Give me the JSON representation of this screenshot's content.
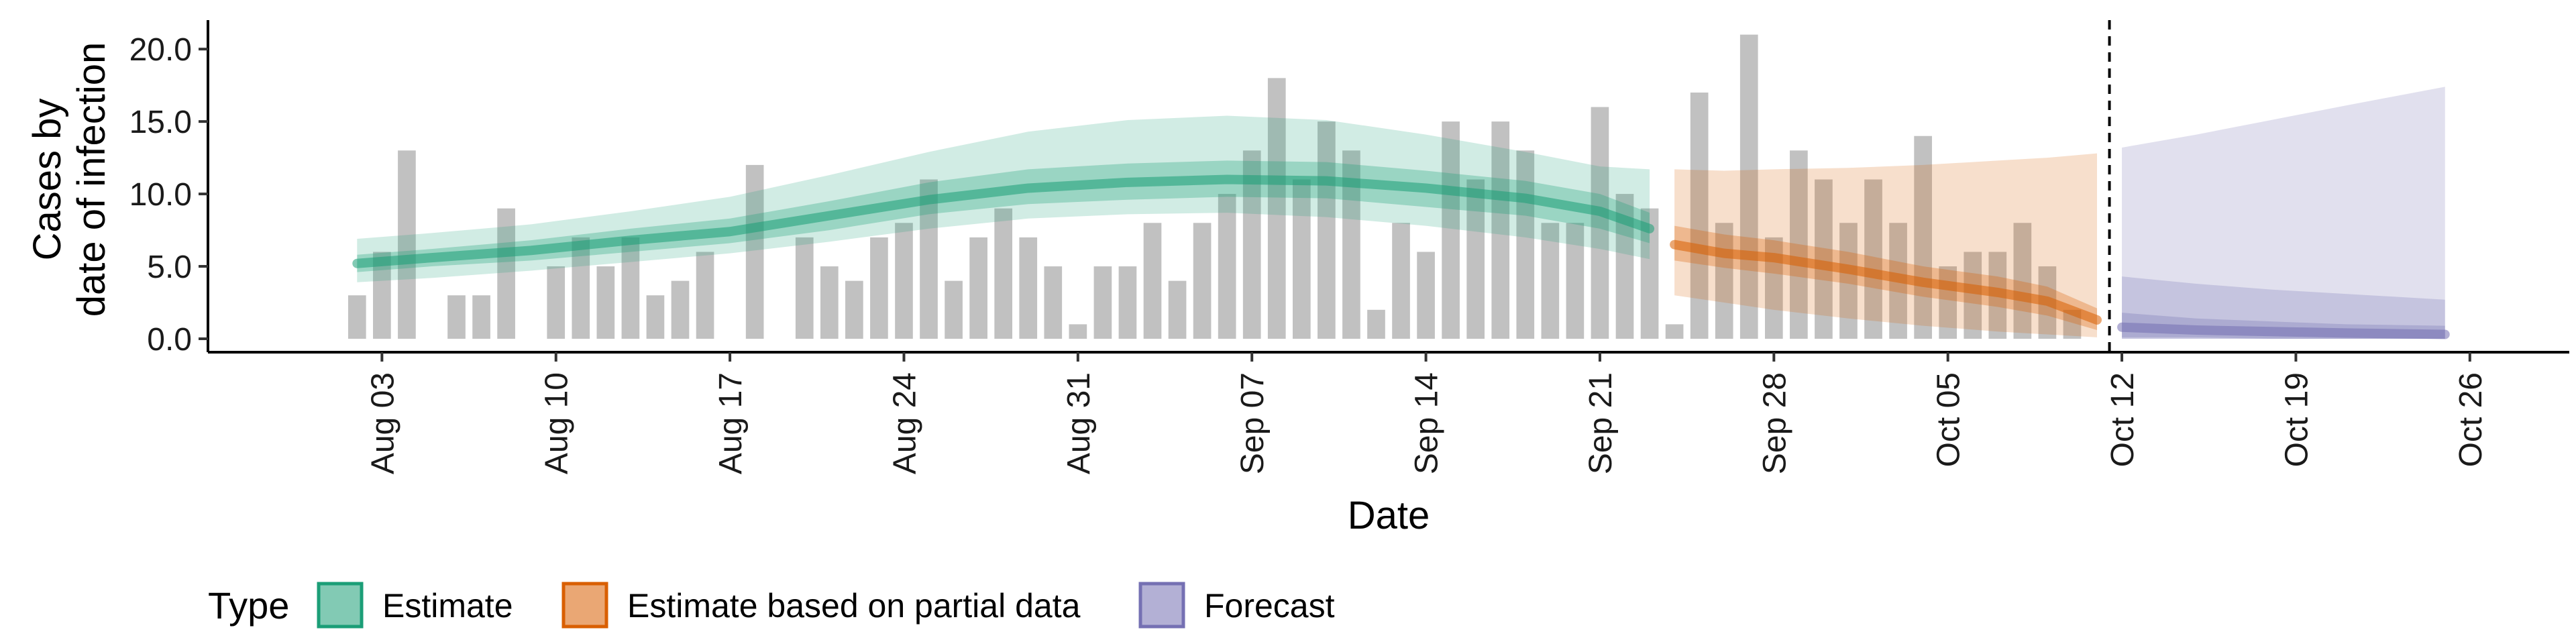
{
  "chart_data": {
    "type": "bar",
    "xlabel": "Date",
    "ylabel_lines": [
      "Cases by",
      "date of infection"
    ],
    "ylim": [
      0,
      22
    ],
    "xlim": [
      "2020-07-27",
      "2020-10-30"
    ],
    "y_ticks": [
      0,
      5,
      10,
      15,
      20
    ],
    "y_tick_labels": [
      "0.0",
      "5.0",
      "10.0",
      "15.0",
      "20.0"
    ],
    "x_ticks": [
      "2020-08-03",
      "2020-08-10",
      "2020-08-17",
      "2020-08-24",
      "2020-08-31",
      "2020-09-07",
      "2020-09-14",
      "2020-09-21",
      "2020-09-28",
      "2020-10-05",
      "2020-10-12",
      "2020-10-19",
      "2020-10-26"
    ],
    "x_tick_labels": [
      "Aug 03",
      "Aug 10",
      "Aug 17",
      "Aug 24",
      "Aug 31",
      "Sep 07",
      "Sep 14",
      "Sep 21",
      "Sep 28",
      "Oct 05",
      "Oct 12",
      "Oct 19",
      "Oct 26"
    ],
    "grid": false,
    "legend_position": "bottom",
    "reported_cases": {
      "color": "#bebebe",
      "dates": [
        "2020-08-02",
        "2020-08-03",
        "2020-08-04",
        "2020-08-05",
        "2020-08-06",
        "2020-08-07",
        "2020-08-08",
        "2020-08-09",
        "2020-08-10",
        "2020-08-11",
        "2020-08-12",
        "2020-08-13",
        "2020-08-14",
        "2020-08-15",
        "2020-08-16",
        "2020-08-17",
        "2020-08-18",
        "2020-08-19",
        "2020-08-20",
        "2020-08-21",
        "2020-08-22",
        "2020-08-23",
        "2020-08-24",
        "2020-08-25",
        "2020-08-26",
        "2020-08-27",
        "2020-08-28",
        "2020-08-29",
        "2020-08-30",
        "2020-08-31",
        "2020-09-01",
        "2020-09-02",
        "2020-09-03",
        "2020-09-04",
        "2020-09-05",
        "2020-09-06",
        "2020-09-07",
        "2020-09-08",
        "2020-09-09",
        "2020-09-10",
        "2020-09-11",
        "2020-09-12",
        "2020-09-13",
        "2020-09-14",
        "2020-09-15",
        "2020-09-16",
        "2020-09-17",
        "2020-09-18",
        "2020-09-19",
        "2020-09-20",
        "2020-09-21",
        "2020-09-22",
        "2020-09-23",
        "2020-09-24",
        "2020-09-25",
        "2020-09-26",
        "2020-09-27",
        "2020-09-28",
        "2020-09-29",
        "2020-09-30",
        "2020-10-01",
        "2020-10-02",
        "2020-10-03",
        "2020-10-04",
        "2020-10-05",
        "2020-10-06",
        "2020-10-07",
        "2020-10-08",
        "2020-10-09",
        "2020-10-10",
        "2020-10-11"
      ],
      "values": [
        3,
        6,
        13,
        0,
        3,
        3,
        9,
        0,
        5,
        7,
        5,
        7,
        3,
        4,
        6,
        0,
        12,
        0,
        7,
        5,
        4,
        7,
        8,
        11,
        4,
        7,
        9,
        7,
        5,
        1,
        5,
        5,
        8,
        4,
        8,
        10,
        13,
        18,
        11,
        15,
        13,
        2,
        8,
        6,
        15,
        11,
        15,
        13,
        8,
        8,
        16,
        10,
        9,
        1,
        17,
        8,
        21,
        7,
        13,
        11,
        8,
        11,
        8,
        14,
        5,
        6,
        6,
        8,
        5,
        2,
        0
      ]
    },
    "series": [
      {
        "name": "Estimate",
        "color": "#1b9e77",
        "dates": [
          "2020-08-02",
          "2020-08-05",
          "2020-08-09",
          "2020-08-13",
          "2020-08-17",
          "2020-08-21",
          "2020-08-25",
          "2020-08-29",
          "2020-09-02",
          "2020-09-06",
          "2020-09-10",
          "2020-09-14",
          "2020-09-18",
          "2020-09-21",
          "2020-09-23"
        ],
        "median": [
          5.2,
          5.6,
          6.1,
          6.8,
          7.4,
          8.5,
          9.6,
          10.4,
          10.8,
          11.0,
          10.9,
          10.4,
          9.7,
          8.8,
          7.6
        ],
        "inner": [
          [
            4.6,
            5.8
          ],
          [
            5.0,
            6.2
          ],
          [
            5.4,
            6.8
          ],
          [
            6.0,
            7.6
          ],
          [
            6.6,
            8.3
          ],
          [
            7.5,
            9.5
          ],
          [
            8.6,
            10.8
          ],
          [
            9.3,
            11.7
          ],
          [
            9.6,
            12.1
          ],
          [
            9.8,
            12.3
          ],
          [
            9.7,
            12.2
          ],
          [
            9.1,
            11.6
          ],
          [
            8.5,
            10.9
          ],
          [
            7.6,
            10.0
          ],
          [
            6.6,
            8.7
          ]
        ],
        "outer": [
          [
            3.9,
            6.9
          ],
          [
            4.2,
            7.3
          ],
          [
            4.7,
            7.9
          ],
          [
            5.3,
            8.8
          ],
          [
            5.9,
            9.8
          ],
          [
            6.7,
            11.3
          ],
          [
            7.6,
            12.9
          ],
          [
            8.3,
            14.3
          ],
          [
            8.6,
            15.1
          ],
          [
            8.7,
            15.4
          ],
          [
            8.4,
            15.1
          ],
          [
            7.8,
            14.1
          ],
          [
            7.0,
            12.9
          ],
          [
            6.2,
            11.9
          ],
          [
            5.5,
            11.7
          ]
        ]
      },
      {
        "name": "Estimate based on partial data",
        "color": "#d95f02",
        "dates": [
          "2020-09-24",
          "2020-09-26",
          "2020-09-28",
          "2020-10-01",
          "2020-10-04",
          "2020-10-07",
          "2020-10-09",
          "2020-10-11"
        ],
        "median": [
          6.5,
          5.9,
          5.6,
          4.8,
          3.9,
          3.2,
          2.6,
          1.3
        ],
        "inner": [
          [
            5.4,
            7.8
          ],
          [
            4.9,
            7.2
          ],
          [
            4.5,
            6.8
          ],
          [
            3.8,
            6.0
          ],
          [
            2.9,
            5.0
          ],
          [
            2.2,
            4.3
          ],
          [
            1.6,
            3.6
          ],
          [
            0.6,
            2.1
          ]
        ],
        "outer": [
          [
            3.0,
            11.7
          ],
          [
            2.5,
            11.6
          ],
          [
            2.0,
            11.7
          ],
          [
            1.4,
            11.8
          ],
          [
            0.9,
            12.0
          ],
          [
            0.5,
            12.3
          ],
          [
            0.3,
            12.5
          ],
          [
            0.1,
            12.8
          ]
        ]
      },
      {
        "name": "Forecast",
        "color": "#7570b3",
        "dates": [
          "2020-10-12",
          "2020-10-15",
          "2020-10-18",
          "2020-10-21",
          "2020-10-25"
        ],
        "median": [
          0.8,
          0.6,
          0.5,
          0.4,
          0.3
        ],
        "inner": [
          [
            0.1,
            1.8
          ],
          [
            0.1,
            1.4
          ],
          [
            0.0,
            1.2
          ],
          [
            0.0,
            1.0
          ],
          [
            0.0,
            0.9
          ]
        ],
        "outer": [
          [
            0.0,
            13.2
          ],
          [
            0.0,
            14.1
          ],
          [
            0.0,
            15.1
          ],
          [
            0.0,
            16.1
          ],
          [
            0.0,
            17.4
          ]
        ],
        "outer_low": [
          [
            0.0,
            4.3
          ],
          [
            0.0,
            3.8
          ],
          [
            0.0,
            3.4
          ],
          [
            0.0,
            3.1
          ],
          [
            0.0,
            2.7
          ]
        ]
      }
    ],
    "forecast_cutoff": "2020-10-11",
    "legend": {
      "title": "Type",
      "items": [
        {
          "label": "Estimate",
          "color": "#1b9e77"
        },
        {
          "label": "Estimate based on partial data",
          "color": "#d95f02"
        },
        {
          "label": "Forecast",
          "color": "#7570b3"
        }
      ]
    }
  }
}
